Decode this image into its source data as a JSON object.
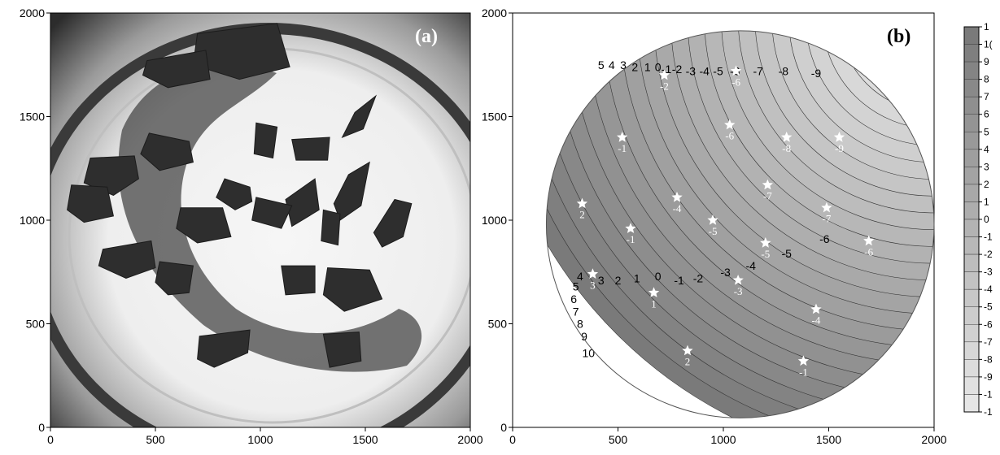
{
  "chart_data": [
    {
      "type": "image",
      "panel_label": "(a)",
      "x_ticks": [
        "0",
        "500",
        "1000",
        "1500",
        "2000"
      ],
      "y_ticks": [
        "0",
        "500",
        "1000",
        "1500",
        "2000"
      ],
      "xlim": [
        0,
        2000
      ],
      "ylim": [
        0,
        2000
      ],
      "content": "photograph of dish with dark irregular fragments",
      "fragments": [
        [
          [
            700,
            1900
          ],
          [
            1080,
            1950
          ],
          [
            1140,
            1740
          ],
          [
            900,
            1680
          ],
          [
            680,
            1750
          ]
        ],
        [
          [
            460,
            1770
          ],
          [
            740,
            1820
          ],
          [
            760,
            1680
          ],
          [
            560,
            1640
          ],
          [
            440,
            1700
          ]
        ],
        [
          [
            470,
            1420
          ],
          [
            660,
            1380
          ],
          [
            680,
            1280
          ],
          [
            520,
            1240
          ],
          [
            430,
            1320
          ]
        ],
        [
          [
            190,
            1300
          ],
          [
            400,
            1310
          ],
          [
            420,
            1200
          ],
          [
            300,
            1120
          ],
          [
            160,
            1180
          ]
        ],
        [
          [
            100,
            1170
          ],
          [
            270,
            1160
          ],
          [
            300,
            1020
          ],
          [
            160,
            990
          ],
          [
            80,
            1050
          ]
        ],
        [
          [
            250,
            860
          ],
          [
            480,
            900
          ],
          [
            500,
            770
          ],
          [
            360,
            720
          ],
          [
            230,
            780
          ]
        ],
        [
          [
            520,
            800
          ],
          [
            680,
            780
          ],
          [
            660,
            650
          ],
          [
            560,
            640
          ],
          [
            500,
            700
          ]
        ],
        [
          [
            620,
            1060
          ],
          [
            820,
            1060
          ],
          [
            860,
            920
          ],
          [
            700,
            890
          ],
          [
            600,
            960
          ]
        ],
        [
          [
            830,
            1200
          ],
          [
            950,
            1160
          ],
          [
            960,
            1090
          ],
          [
            880,
            1050
          ],
          [
            790,
            1110
          ]
        ],
        [
          [
            980,
            1470
          ],
          [
            1080,
            1450
          ],
          [
            1060,
            1300
          ],
          [
            970,
            1320
          ]
        ],
        [
          [
            1150,
            1390
          ],
          [
            1330,
            1400
          ],
          [
            1320,
            1290
          ],
          [
            1170,
            1290
          ]
        ],
        [
          [
            1450,
            1520
          ],
          [
            1550,
            1600
          ],
          [
            1490,
            1440
          ],
          [
            1390,
            1400
          ]
        ],
        [
          [
            1120,
            1100
          ],
          [
            1260,
            1200
          ],
          [
            1280,
            1050
          ],
          [
            1150,
            970
          ]
        ],
        [
          [
            980,
            1110
          ],
          [
            1150,
            1070
          ],
          [
            1100,
            960
          ],
          [
            960,
            1000
          ]
        ],
        [
          [
            1420,
            1220
          ],
          [
            1520,
            1280
          ],
          [
            1480,
            1070
          ],
          [
            1380,
            1000
          ],
          [
            1350,
            1080
          ]
        ],
        [
          [
            1640,
            1100
          ],
          [
            1720,
            1080
          ],
          [
            1680,
            920
          ],
          [
            1580,
            870
          ],
          [
            1540,
            940
          ]
        ],
        [
          [
            1300,
            1050
          ],
          [
            1380,
            1030
          ],
          [
            1370,
            880
          ],
          [
            1290,
            900
          ]
        ],
        [
          [
            1100,
            780
          ],
          [
            1260,
            780
          ],
          [
            1260,
            650
          ],
          [
            1120,
            640
          ]
        ],
        [
          [
            1320,
            770
          ],
          [
            1520,
            760
          ],
          [
            1580,
            620
          ],
          [
            1400,
            560
          ],
          [
            1300,
            640
          ]
        ],
        [
          [
            710,
            440
          ],
          [
            950,
            470
          ],
          [
            940,
            360
          ],
          [
            780,
            290
          ],
          [
            700,
            330
          ]
        ],
        [
          [
            1300,
            450
          ],
          [
            1470,
            460
          ],
          [
            1480,
            320
          ],
          [
            1330,
            290
          ]
        ]
      ]
    },
    {
      "type": "contour",
      "panel_label": "(b)",
      "x_ticks": [
        "0",
        "500",
        "1000",
        "1500",
        "2000"
      ],
      "y_ticks": [
        "0",
        "500",
        "1000",
        "1500",
        "2000"
      ],
      "xlim": [
        0,
        2000
      ],
      "ylim": [
        0,
        2000
      ],
      "domain_center": [
        1080,
        980
      ],
      "domain_radius": 920,
      "field_center": [
        2000,
        1980
      ],
      "field_base_distance": 2130,
      "field_spacing": 80,
      "contour_labels": [
        {
          "text": "5",
          "x": 420,
          "y": 1730
        },
        {
          "text": "4",
          "x": 470,
          "y": 1730
        },
        {
          "text": "3",
          "x": 525,
          "y": 1730
        },
        {
          "text": "2",
          "x": 580,
          "y": 1720
        },
        {
          "text": "1",
          "x": 640,
          "y": 1720
        },
        {
          "text": "0",
          "x": 690,
          "y": 1720
        },
        {
          "text": "-1",
          "x": 730,
          "y": 1710
        },
        {
          "text": "-2",
          "x": 780,
          "y": 1710
        },
        {
          "text": "-3",
          "x": 845,
          "y": 1700
        },
        {
          "text": "-4",
          "x": 910,
          "y": 1700
        },
        {
          "text": "-5",
          "x": 975,
          "y": 1700
        },
        {
          "text": "-6",
          "x": 1055,
          "y": 1700
        },
        {
          "text": "-7",
          "x": 1165,
          "y": 1700
        },
        {
          "text": "-8",
          "x": 1285,
          "y": 1700
        },
        {
          "text": "-9",
          "x": 1440,
          "y": 1690
        },
        {
          "text": "5",
          "x": 300,
          "y": 660
        },
        {
          "text": "4",
          "x": 320,
          "y": 710
        },
        {
          "text": "3",
          "x": 420,
          "y": 690
        },
        {
          "text": "2",
          "x": 500,
          "y": 690
        },
        {
          "text": "1",
          "x": 590,
          "y": 700
        },
        {
          "text": "0",
          "x": 690,
          "y": 710
        },
        {
          "text": "-1",
          "x": 790,
          "y": 690
        },
        {
          "text": "-2",
          "x": 880,
          "y": 700
        },
        {
          "text": "-3",
          "x": 1010,
          "y": 730
        },
        {
          "text": "-4",
          "x": 1130,
          "y": 760
        },
        {
          "text": "-5",
          "x": 1300,
          "y": 820
        },
        {
          "text": "-6",
          "x": 1480,
          "y": 890
        },
        {
          "text": "6",
          "x": 290,
          "y": 600
        },
        {
          "text": "7",
          "x": 300,
          "y": 540
        },
        {
          "text": "8",
          "x": 320,
          "y": 480
        },
        {
          "text": "9",
          "x": 340,
          "y": 420
        },
        {
          "text": "10",
          "x": 360,
          "y": 340
        }
      ],
      "points": [
        {
          "label": "-2",
          "x": 720,
          "y": 1700
        },
        {
          "label": "-6",
          "x": 1060,
          "y": 1720
        },
        {
          "label": "-1",
          "x": 520,
          "y": 1400
        },
        {
          "label": "-6",
          "x": 1030,
          "y": 1460
        },
        {
          "label": "-8",
          "x": 1300,
          "y": 1400
        },
        {
          "label": "-9",
          "x": 1550,
          "y": 1400
        },
        {
          "label": "2",
          "x": 330,
          "y": 1080
        },
        {
          "label": "-4",
          "x": 780,
          "y": 1110
        },
        {
          "label": "-7",
          "x": 1210,
          "y": 1170
        },
        {
          "label": "-1",
          "x": 560,
          "y": 960
        },
        {
          "label": "-5",
          "x": 950,
          "y": 1000
        },
        {
          "label": "-7",
          "x": 1490,
          "y": 1060
        },
        {
          "label": "-5",
          "x": 1200,
          "y": 890
        },
        {
          "label": "-6",
          "x": 1690,
          "y": 900
        },
        {
          "label": "3",
          "x": 380,
          "y": 740
        },
        {
          "label": "-3",
          "x": 1070,
          "y": 710
        },
        {
          "label": "1",
          "x": 670,
          "y": 650
        },
        {
          "label": "-4",
          "x": 1440,
          "y": 570
        },
        {
          "label": "2",
          "x": 830,
          "y": 370
        },
        {
          "label": "-1",
          "x": 1380,
          "y": 320
        }
      ],
      "colorbar": {
        "ticks": [
          "1",
          "1(",
          "9",
          "8",
          "7",
          "6",
          "5",
          "4",
          "3",
          "2",
          "1",
          "0",
          "-1",
          "-2",
          "-3",
          "-4",
          "-5",
          "-6",
          "-7",
          "-8",
          "-9",
          "-1",
          "-1"
        ],
        "color_top": "#7a7a7a",
        "color_bottom": "#e6e6e6"
      }
    }
  ]
}
